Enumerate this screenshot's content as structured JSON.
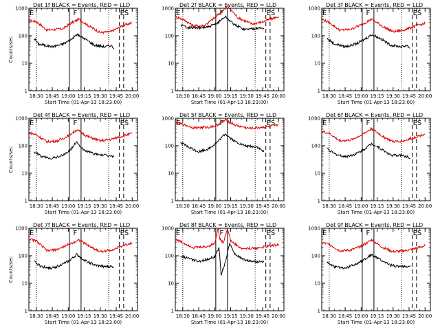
{
  "chart_data": {
    "type": "line",
    "layout": "3x3 grid of panels",
    "yscale": "log",
    "ylim": [
      1,
      1000
    ],
    "y_ticks": [
      "1",
      "10",
      "100",
      "1000"
    ],
    "ylabel": "Counts/sec",
    "xlabel": "Start Time (01-Apr-13 18:23:00)",
    "x_ticks": [
      "18:30",
      "18:45",
      "19:00",
      "19:15",
      "19:30",
      "19:45",
      "20:00"
    ],
    "x_tick_minutes": [
      30,
      45,
      60,
      75,
      90,
      105,
      120
    ],
    "xlim_minutes": [
      23,
      125
    ],
    "series_colors": {
      "events": "#000000",
      "lld": "#e00000"
    },
    "markers": {
      "dotted_minutes": [
        30,
        98
      ],
      "solid_minutes": [
        61,
        72
      ],
      "dashed_minutes": [
        108,
        112
      ],
      "labels": [
        {
          "text": "E",
          "minute": 23
        },
        {
          "text": "F",
          "minute": 64
        },
        {
          "text": "E",
          "minute": 108
        },
        {
          "text": "S",
          "minute": 112
        }
      ]
    },
    "panels": [
      {
        "title": "Det 1f BLACK = Events, RED = LLD",
        "show_ylabel": true,
        "events": [
          [
            28,
            80
          ],
          [
            32,
            50
          ],
          [
            45,
            40
          ],
          [
            55,
            50
          ],
          [
            62,
            70
          ],
          [
            68,
            110
          ],
          [
            75,
            80
          ],
          [
            85,
            45
          ],
          [
            95,
            40
          ],
          [
            100,
            45
          ],
          [
            103,
            35
          ]
        ],
        "lld": [
          [
            23,
            350
          ],
          [
            30,
            330
          ],
          [
            40,
            160
          ],
          [
            55,
            180
          ],
          [
            62,
            280
          ],
          [
            70,
            400
          ],
          [
            80,
            220
          ],
          [
            90,
            130
          ],
          [
            100,
            140
          ],
          [
            110,
            220
          ],
          [
            120,
            300
          ]
        ]
      },
      {
        "title": "Det 2f BLACK = Events, RED = LLD",
        "show_ylabel": false,
        "events": [
          [
            28,
            250
          ],
          [
            35,
            200
          ],
          [
            45,
            190
          ],
          [
            55,
            210
          ],
          [
            62,
            280
          ],
          [
            70,
            500
          ],
          [
            78,
            260
          ],
          [
            88,
            170
          ],
          [
            100,
            190
          ],
          [
            106,
            190
          ]
        ],
        "lld": [
          [
            23,
            500
          ],
          [
            30,
            400
          ],
          [
            40,
            230
          ],
          [
            50,
            230
          ],
          [
            60,
            450
          ],
          [
            72,
            1200
          ],
          [
            82,
            450
          ],
          [
            95,
            270
          ],
          [
            105,
            320
          ],
          [
            112,
            400
          ],
          [
            120,
            500
          ]
        ]
      },
      {
        "title": "Det 3f BLACK = Events, RED = LLD",
        "show_ylabel": false,
        "events": [
          [
            28,
            80
          ],
          [
            35,
            50
          ],
          [
            45,
            40
          ],
          [
            55,
            50
          ],
          [
            62,
            70
          ],
          [
            70,
            110
          ],
          [
            78,
            80
          ],
          [
            88,
            45
          ],
          [
            98,
            40
          ],
          [
            103,
            45
          ],
          [
            106,
            35
          ]
        ],
        "lld": [
          [
            23,
            400
          ],
          [
            30,
            300
          ],
          [
            40,
            160
          ],
          [
            50,
            170
          ],
          [
            60,
            250
          ],
          [
            70,
            400
          ],
          [
            80,
            220
          ],
          [
            90,
            140
          ],
          [
            100,
            160
          ],
          [
            110,
            220
          ],
          [
            120,
            280
          ]
        ]
      },
      {
        "title": "Det 4f BLACK = Events, RED = LLD",
        "show_ylabel": true,
        "events": [
          [
            28,
            60
          ],
          [
            35,
            40
          ],
          [
            45,
            35
          ],
          [
            55,
            45
          ],
          [
            62,
            70
          ],
          [
            68,
            140
          ],
          [
            74,
            70
          ],
          [
            85,
            50
          ],
          [
            95,
            45
          ],
          [
            103,
            40
          ]
        ],
        "lld": [
          [
            23,
            300
          ],
          [
            30,
            250
          ],
          [
            40,
            140
          ],
          [
            50,
            150
          ],
          [
            60,
            230
          ],
          [
            68,
            380
          ],
          [
            78,
            220
          ],
          [
            90,
            150
          ],
          [
            100,
            170
          ],
          [
            110,
            220
          ],
          [
            120,
            280
          ]
        ]
      },
      {
        "title": "Det 5f BLACK = Events, RED = LLD",
        "show_ylabel": false,
        "events": [
          [
            28,
            130
          ],
          [
            35,
            90
          ],
          [
            45,
            60
          ],
          [
            55,
            80
          ],
          [
            62,
            130
          ],
          [
            70,
            270
          ],
          [
            78,
            150
          ],
          [
            88,
            100
          ],
          [
            100,
            90
          ],
          [
            106,
            60
          ]
        ],
        "lld": [
          [
            23,
            700
          ],
          [
            30,
            600
          ],
          [
            40,
            450
          ],
          [
            55,
            470
          ],
          [
            62,
            560
          ],
          [
            70,
            850
          ],
          [
            80,
            550
          ],
          [
            92,
            430
          ],
          [
            105,
            470
          ],
          [
            115,
            520
          ],
          [
            120,
            580
          ]
        ]
      },
      {
        "title": "Det 6f BLACK = Events, RED = LLD",
        "show_ylabel": false,
        "events": [
          [
            28,
            80
          ],
          [
            35,
            50
          ],
          [
            45,
            40
          ],
          [
            55,
            50
          ],
          [
            62,
            70
          ],
          [
            70,
            120
          ],
          [
            78,
            80
          ],
          [
            88,
            45
          ],
          [
            98,
            45
          ],
          [
            103,
            40
          ],
          [
            106,
            35
          ]
        ],
        "lld": [
          [
            23,
            330
          ],
          [
            30,
            280
          ],
          [
            40,
            150
          ],
          [
            50,
            160
          ],
          [
            60,
            240
          ],
          [
            70,
            420
          ],
          [
            80,
            220
          ],
          [
            90,
            140
          ],
          [
            100,
            150
          ],
          [
            110,
            200
          ],
          [
            120,
            270
          ]
        ]
      },
      {
        "title": "Det 7f BLACK = Events, RED = LLD",
        "show_ylabel": true,
        "events": [
          [
            28,
            60
          ],
          [
            35,
            40
          ],
          [
            45,
            35
          ],
          [
            55,
            50
          ],
          [
            62,
            70
          ],
          [
            68,
            110
          ],
          [
            75,
            70
          ],
          [
            85,
            45
          ],
          [
            95,
            40
          ],
          [
            103,
            40
          ]
        ],
        "lld": [
          [
            23,
            400
          ],
          [
            30,
            350
          ],
          [
            40,
            150
          ],
          [
            50,
            170
          ],
          [
            60,
            250
          ],
          [
            70,
            380
          ],
          [
            80,
            220
          ],
          [
            90,
            140
          ],
          [
            100,
            160
          ],
          [
            110,
            220
          ],
          [
            120,
            300
          ]
        ]
      },
      {
        "title": "Det 8f BLACK = Events, RED = LLD",
        "show_ylabel": false,
        "events": [
          [
            28,
            100
          ],
          [
            35,
            80
          ],
          [
            45,
            60
          ],
          [
            55,
            80
          ],
          [
            60,
            90
          ],
          [
            64,
            200
          ],
          [
            66,
            20
          ],
          [
            70,
            60
          ],
          [
            74,
            300
          ],
          [
            78,
            120
          ],
          [
            88,
            70
          ],
          [
            100,
            60
          ],
          [
            106,
            60
          ]
        ],
        "lld": [
          [
            23,
            400
          ],
          [
            30,
            300
          ],
          [
            40,
            200
          ],
          [
            52,
            210
          ],
          [
            60,
            280
          ],
          [
            63,
            1000
          ],
          [
            65,
            400
          ],
          [
            68,
            300
          ],
          [
            72,
            1000
          ],
          [
            75,
            350
          ],
          [
            85,
            180
          ],
          [
            100,
            190
          ],
          [
            110,
            220
          ],
          [
            120,
            260
          ]
        ]
      },
      {
        "title": "Det 9f BLACK = Events, RED = LLD",
        "show_ylabel": false,
        "events": [
          [
            28,
            60
          ],
          [
            35,
            40
          ],
          [
            45,
            35
          ],
          [
            55,
            50
          ],
          [
            62,
            70
          ],
          [
            70,
            110
          ],
          [
            78,
            70
          ],
          [
            88,
            45
          ],
          [
            98,
            40
          ],
          [
            103,
            40
          ],
          [
            106,
            45
          ]
        ],
        "lld": [
          [
            23,
            300
          ],
          [
            30,
            260
          ],
          [
            40,
            150
          ],
          [
            50,
            160
          ],
          [
            60,
            220
          ],
          [
            70,
            380
          ],
          [
            80,
            200
          ],
          [
            90,
            140
          ],
          [
            100,
            150
          ],
          [
            110,
            180
          ],
          [
            120,
            230
          ]
        ]
      }
    ]
  }
}
